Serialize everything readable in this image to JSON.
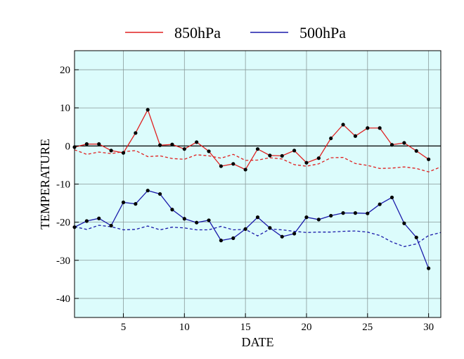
{
  "chart_data": {
    "type": "line",
    "title": "",
    "xlabel": "DATE",
    "ylabel": "TEMPERATURE",
    "xlim": [
      1,
      31
    ],
    "ylim": [
      -45,
      25
    ],
    "xticks": [
      5,
      10,
      15,
      20,
      25,
      30
    ],
    "yticks": [
      -40,
      -30,
      -20,
      -10,
      0,
      10,
      20
    ],
    "xtick_labels": [
      "5",
      "10",
      "15",
      "20",
      "25",
      "30"
    ],
    "ytick_labels": [
      "-40",
      "-30",
      "-20",
      "-10",
      "0",
      "10",
      "20"
    ],
    "grid": true,
    "background": "#dcfcfc",
    "zero_line": 0,
    "legend_position": "top",
    "series": [
      {
        "name": "850hPa",
        "color": "#e02020",
        "style": "solid-markers",
        "x": [
          1,
          2,
          3,
          4,
          5,
          6,
          7,
          8,
          9,
          10,
          11,
          12,
          13,
          14,
          15,
          16,
          17,
          18,
          19,
          20,
          21,
          22,
          23,
          24,
          25,
          26,
          27,
          28,
          29,
          30
        ],
        "values": [
          -0.3,
          0.5,
          0.5,
          -1.2,
          -1.8,
          3.4,
          9.5,
          0.2,
          0.4,
          -0.8,
          1.0,
          -1.4,
          -5.3,
          -4.7,
          -6.2,
          -0.8,
          -2.5,
          -2.6,
          -1.2,
          -4.4,
          -3.2,
          2.0,
          5.6,
          2.6,
          4.7,
          4.7,
          0.3,
          0.8,
          -1.3,
          -3.5
        ]
      },
      {
        "name": "500hPa",
        "color": "#1a1aaa",
        "style": "solid-markers",
        "x": [
          1,
          2,
          3,
          4,
          5,
          6,
          7,
          8,
          9,
          10,
          11,
          12,
          13,
          14,
          15,
          16,
          17,
          18,
          19,
          20,
          21,
          22,
          23,
          24,
          25,
          26,
          27,
          28,
          29,
          30
        ],
        "values": [
          -21.3,
          -19.7,
          -19.0,
          -20.9,
          -14.8,
          -15.2,
          -11.7,
          -12.6,
          -16.7,
          -19.1,
          -20.1,
          -19.5,
          -24.8,
          -24.2,
          -21.8,
          -18.7,
          -21.5,
          -23.8,
          -23.0,
          -18.7,
          -19.3,
          -18.3,
          -17.6,
          -17.6,
          -17.7,
          -15.3,
          -13.5,
          -20.3,
          -24.0,
          -32.1
        ]
      },
      {
        "name": "",
        "color": "#e02020",
        "style": "dashed",
        "x": [
          1,
          2,
          3,
          4,
          5,
          6,
          7,
          8,
          9,
          10,
          11,
          12,
          13,
          14,
          15,
          16,
          17,
          18,
          19,
          20,
          21,
          22,
          23,
          24,
          25,
          26,
          27,
          28,
          29,
          30,
          31
        ],
        "values": [
          -1.0,
          -2.2,
          -1.6,
          -2.0,
          -1.5,
          -1.2,
          -2.8,
          -2.6,
          -3.3,
          -3.5,
          -2.3,
          -2.6,
          -3.2,
          -2.2,
          -3.8,
          -3.7,
          -3.1,
          -3.4,
          -4.9,
          -5.3,
          -4.7,
          -3.1,
          -3.0,
          -4.6,
          -5.1,
          -5.9,
          -5.8,
          -5.5,
          -5.9,
          -6.8,
          -5.5
        ]
      },
      {
        "name": "",
        "color": "#1a1aaa",
        "style": "dashed",
        "x": [
          1,
          2,
          3,
          4,
          5,
          6,
          7,
          8,
          9,
          10,
          11,
          12,
          13,
          14,
          15,
          16,
          17,
          18,
          19,
          20,
          21,
          22,
          23,
          24,
          25,
          26,
          27,
          28,
          29,
          30,
          31
        ],
        "values": [
          -21.2,
          -21.9,
          -20.8,
          -21.2,
          -22.0,
          -21.9,
          -21.0,
          -22.0,
          -21.3,
          -21.5,
          -22.0,
          -22.0,
          -21.1,
          -22.0,
          -21.9,
          -23.6,
          -21.8,
          -22.0,
          -22.4,
          -22.7,
          -22.6,
          -22.6,
          -22.4,
          -22.3,
          -22.6,
          -23.5,
          -25.2,
          -26.4,
          -25.7,
          -23.5,
          -22.7
        ]
      }
    ]
  }
}
